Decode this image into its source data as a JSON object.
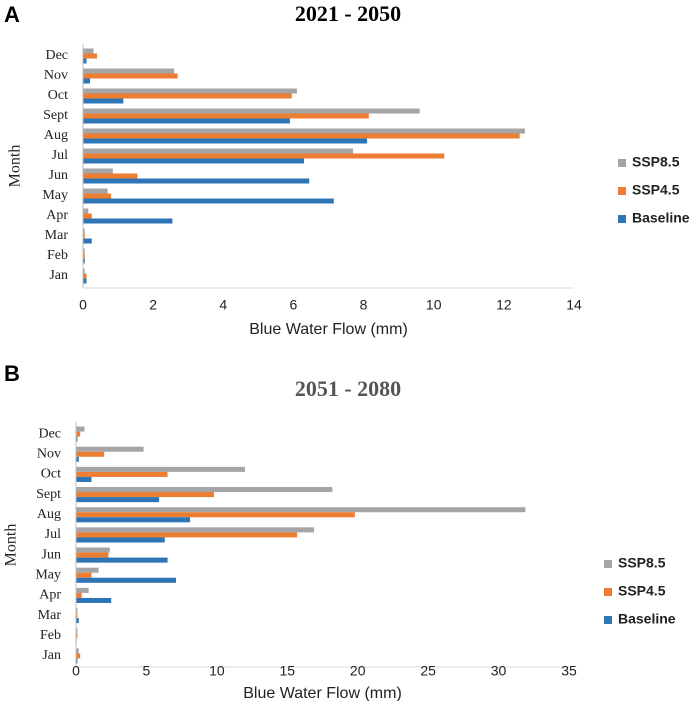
{
  "panels": [
    {
      "letter": "A"
    },
    {
      "letter": "B"
    }
  ],
  "legend_order": [
    "SSP8.5",
    "SSP4.5",
    "Baseline"
  ],
  "chart_data": [
    {
      "type": "bar",
      "orientation": "horizontal",
      "title": "2021 - 2050",
      "title_color": "#000000",
      "xlabel": "Blue Water Flow (mm)",
      "ylabel": "Month",
      "xlim": [
        0,
        14
      ],
      "xticks": [
        0,
        2,
        4,
        6,
        8,
        10,
        12,
        14
      ],
      "grid": false,
      "legend_position": "right",
      "categories": [
        "Jan",
        "Feb",
        "Mar",
        "Apr",
        "May",
        "Jun",
        "Jul",
        "Aug",
        "Sept",
        "Oct",
        "Nov",
        "Dec"
      ],
      "series": [
        {
          "name": "SSP8.5",
          "color": "#a5a5a5",
          "values": [
            0.05,
            0.05,
            0.05,
            0.15,
            0.7,
            0.85,
            7.7,
            12.6,
            9.6,
            6.1,
            2.6,
            0.3
          ]
        },
        {
          "name": "SSP4.5",
          "color": "#ed7d31",
          "values": [
            0.1,
            0.05,
            0.05,
            0.25,
            0.8,
            1.55,
            10.3,
            12.45,
            8.15,
            5.95,
            2.7,
            0.4
          ]
        },
        {
          "name": "Baseline",
          "color": "#2e75b6",
          "values": [
            0.1,
            0.05,
            0.25,
            2.55,
            7.15,
            6.45,
            6.3,
            8.1,
            5.9,
            1.15,
            0.2,
            0.1
          ]
        }
      ]
    },
    {
      "type": "bar",
      "orientation": "horizontal",
      "title": "2051 - 2080",
      "title_color": "#555555",
      "xlabel": "Blue Water Flow (mm)",
      "ylabel": "Month",
      "xlim": [
        0,
        35
      ],
      "xticks": [
        0,
        5,
        10,
        15,
        20,
        25,
        30,
        35
      ],
      "grid": false,
      "legend_position": "right",
      "categories": [
        "Jan",
        "Feb",
        "Mar",
        "Apr",
        "May",
        "Jun",
        "Jul",
        "Aug",
        "Sept",
        "Oct",
        "Nov",
        "Dec"
      ],
      "series": [
        {
          "name": "SSP8.5",
          "color": "#a5a5a5",
          "values": [
            0.2,
            0.1,
            0.1,
            0.9,
            1.6,
            2.4,
            16.9,
            31.9,
            18.2,
            12.0,
            4.8,
            0.6
          ]
        },
        {
          "name": "SSP4.5",
          "color": "#ed7d31",
          "values": [
            0.3,
            0.1,
            0.1,
            0.4,
            1.1,
            2.3,
            15.7,
            19.8,
            9.8,
            6.5,
            2.0,
            0.3
          ]
        },
        {
          "name": "Baseline",
          "color": "#2e75b6",
          "values": [
            0.1,
            0.05,
            0.2,
            2.5,
            7.1,
            6.5,
            6.3,
            8.1,
            5.9,
            1.1,
            0.2,
            0.1
          ]
        }
      ]
    }
  ]
}
